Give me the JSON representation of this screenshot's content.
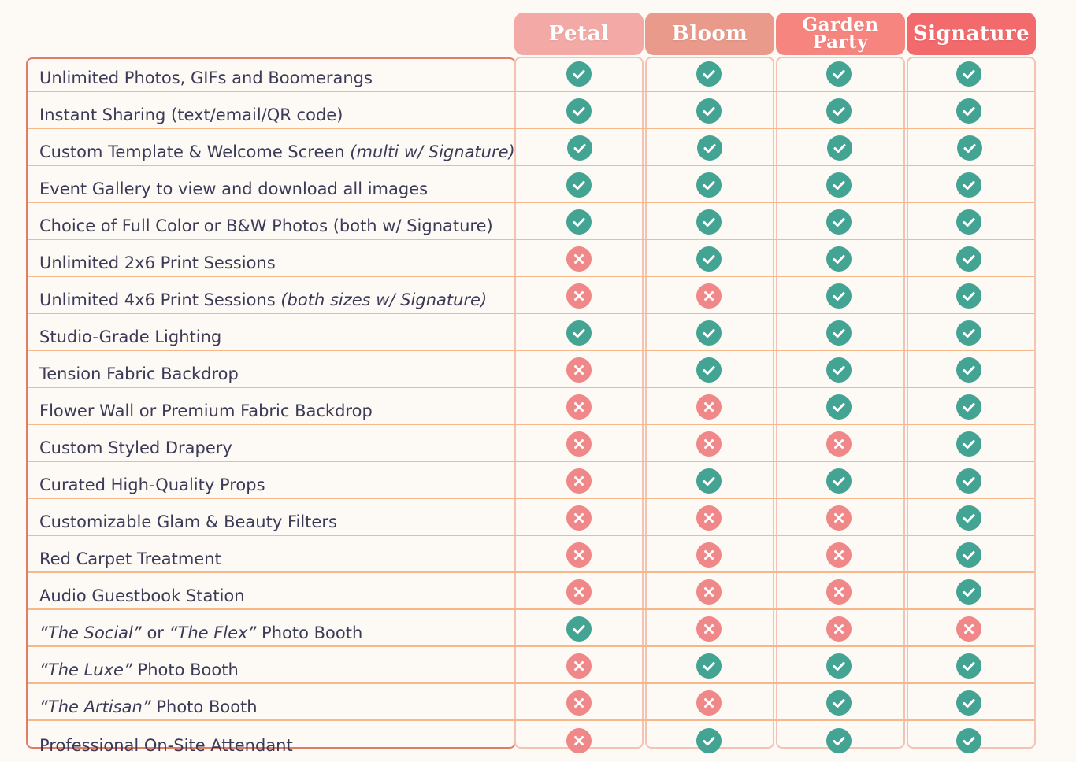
{
  "tiers": [
    {
      "name": "Petal",
      "color": "#f3aaa7"
    },
    {
      "name": "Bloom",
      "color": "#ea9a8a"
    },
    {
      "name": "Garden Party",
      "color": "#f7857f"
    },
    {
      "name": "Signature",
      "color": "#f36a6c"
    }
  ],
  "garden_lines": [
    "Garden",
    "Party"
  ],
  "icons": {
    "included": "check-circle-icon",
    "excluded": "x-circle-icon"
  },
  "colors": {
    "included": "#44a494",
    "excluded": "#f08788"
  },
  "features": [
    {
      "pre": "",
      "italic": "",
      "post": "Unlimited Photos, GIFs and Boomerangs",
      "tail": "",
      "avail": [
        true,
        true,
        true,
        true
      ]
    },
    {
      "pre": "",
      "italic": "",
      "post": "Instant Sharing (text/email/QR code)",
      "tail": "",
      "avail": [
        true,
        true,
        true,
        true
      ]
    },
    {
      "pre": "Custom Template & Welcome Screen ",
      "italic": "(multi w/ Signature)",
      "post": "",
      "tail": "",
      "avail": [
        true,
        true,
        true,
        true
      ]
    },
    {
      "pre": "",
      "italic": "",
      "post": "Event Gallery to view and download all images",
      "tail": "",
      "avail": [
        true,
        true,
        true,
        true
      ]
    },
    {
      "pre": "",
      "italic": "",
      "post": "Choice of Full Color or B&W Photos (both w/ Signature)",
      "tail": "",
      "avail": [
        true,
        true,
        true,
        true
      ]
    },
    {
      "pre": "",
      "italic": "",
      "post": "Unlimited 2x6 Print Sessions",
      "tail": "",
      "avail": [
        false,
        true,
        true,
        true
      ]
    },
    {
      "pre": "Unlimited 4x6 Print Sessions ",
      "italic": "(both sizes w/ Signature)",
      "post": "",
      "tail": "",
      "avail": [
        false,
        false,
        true,
        true
      ]
    },
    {
      "pre": "",
      "italic": "",
      "post": "Studio-Grade Lighting",
      "tail": "",
      "avail": [
        true,
        true,
        true,
        true
      ]
    },
    {
      "pre": "",
      "italic": "",
      "post": "Tension Fabric Backdrop",
      "tail": "",
      "avail": [
        false,
        true,
        true,
        true
      ]
    },
    {
      "pre": "",
      "italic": "",
      "post": "Flower Wall or Premium Fabric Backdrop",
      "tail": "",
      "avail": [
        false,
        false,
        true,
        true
      ]
    },
    {
      "pre": "",
      "italic": "",
      "post": "Custom Styled Drapery",
      "tail": "",
      "avail": [
        false,
        false,
        false,
        true
      ]
    },
    {
      "pre": "",
      "italic": "",
      "post": "Curated High-Quality Props",
      "tail": "",
      "avail": [
        false,
        true,
        true,
        true
      ]
    },
    {
      "pre": "",
      "italic": "",
      "post": "Customizable Glam & Beauty Filters",
      "tail": "",
      "avail": [
        false,
        false,
        false,
        true
      ]
    },
    {
      "pre": "",
      "italic": "",
      "post": "Red Carpet Treatment",
      "tail": "",
      "avail": [
        false,
        false,
        false,
        true
      ]
    },
    {
      "pre": "",
      "italic": "",
      "post": "Audio Guestbook Station",
      "tail": "",
      "avail": [
        false,
        false,
        false,
        true
      ]
    },
    {
      "pre": "",
      "italic": "“The Social”",
      "post": " or ",
      "tail": "",
      "italic2": "“The Flex”",
      "post2": " Photo Booth",
      "avail": [
        true,
        false,
        false,
        false
      ]
    },
    {
      "pre": "",
      "italic": "“The Luxe”",
      "post": " Photo Booth",
      "tail": "",
      "avail": [
        false,
        true,
        true,
        true
      ]
    },
    {
      "pre": "",
      "italic": "“The Artisan”",
      "post": " Photo Booth",
      "tail": "",
      "avail": [
        false,
        false,
        true,
        true
      ]
    },
    {
      "pre": "",
      "italic": "",
      "post": "Professional On-Site Attendant",
      "tail": "",
      "avail": [
        false,
        true,
        true,
        true
      ]
    }
  ]
}
